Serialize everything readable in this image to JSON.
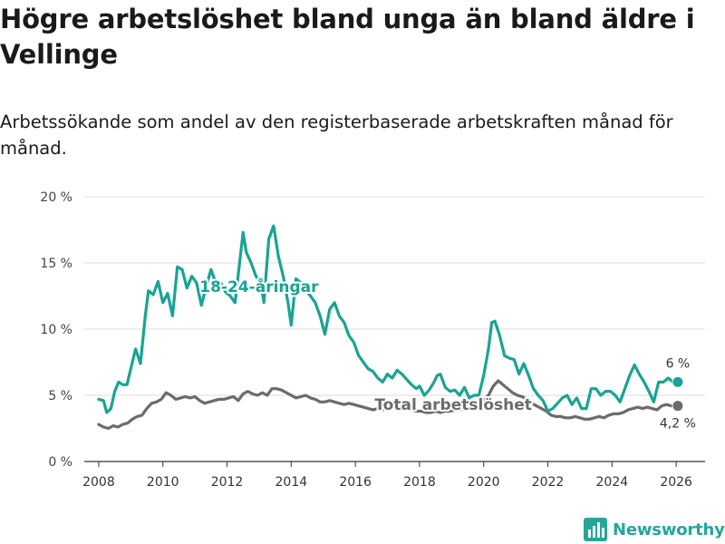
{
  "title": "Högre arbetslöshet bland unga än bland äldre i Vellinge",
  "subtitle": "Arbetssökande som andel av den registerbaserade arbetskraften månad för månad.",
  "brand": {
    "name": "Newsworthy",
    "icon": "bar-chart-icon",
    "color": "#26a69a"
  },
  "chart_data": {
    "type": "line",
    "title": "Högre arbetslöshet bland unga än bland äldre i Vellinge",
    "xlabel": "",
    "ylabel": "",
    "ylim": [
      0,
      20
    ],
    "xlim": [
      2007.55,
      2026.9
    ],
    "grid": true,
    "yticks": [
      {
        "value": 0,
        "label": "0 %"
      },
      {
        "value": 5,
        "label": "5 %"
      },
      {
        "value": 10,
        "label": "10 %"
      },
      {
        "value": 15,
        "label": "15 %"
      },
      {
        "value": 20,
        "label": "20 %"
      }
    ],
    "xticks": [
      {
        "value": 2008,
        "label": "2008"
      },
      {
        "value": 2010,
        "label": "2010"
      },
      {
        "value": 2012,
        "label": "2012"
      },
      {
        "value": 2014,
        "label": "2014"
      },
      {
        "value": 2016,
        "label": "2016"
      },
      {
        "value": 2018,
        "label": "2018"
      },
      {
        "value": 2020,
        "label": "2020"
      },
      {
        "value": 2022,
        "label": "2022"
      },
      {
        "value": 2024,
        "label": "2024"
      },
      {
        "value": 2026,
        "label": "2026"
      }
    ],
    "series": [
      {
        "name": "18-24-åringar",
        "color": "#1aa394",
        "label": "18-24-åringar",
        "end_label": "6 %",
        "points": [
          [
            2008.0,
            4.7
          ],
          [
            2008.15,
            4.6
          ],
          [
            2008.25,
            3.7
          ],
          [
            2008.38,
            4.0
          ],
          [
            2008.5,
            5.3
          ],
          [
            2008.62,
            6.0
          ],
          [
            2008.75,
            5.8
          ],
          [
            2008.88,
            5.8
          ],
          [
            2009.0,
            7.0
          ],
          [
            2009.15,
            8.5
          ],
          [
            2009.3,
            7.4
          ],
          [
            2009.45,
            11.0
          ],
          [
            2009.55,
            12.9
          ],
          [
            2009.7,
            12.6
          ],
          [
            2009.85,
            13.6
          ],
          [
            2010.0,
            12.0
          ],
          [
            2010.15,
            12.7
          ],
          [
            2010.3,
            11.0
          ],
          [
            2010.45,
            14.7
          ],
          [
            2010.6,
            14.5
          ],
          [
            2010.75,
            13.1
          ],
          [
            2010.9,
            14.0
          ],
          [
            2011.05,
            13.5
          ],
          [
            2011.2,
            11.8
          ],
          [
            2011.35,
            13.2
          ],
          [
            2011.5,
            14.5
          ],
          [
            2011.65,
            13.5
          ],
          [
            2011.8,
            13.5
          ],
          [
            2011.95,
            12.8
          ],
          [
            2012.1,
            12.5
          ],
          [
            2012.25,
            12.0
          ],
          [
            2012.4,
            15.2
          ],
          [
            2012.5,
            17.3
          ],
          [
            2012.6,
            15.8
          ],
          [
            2012.75,
            15.0
          ],
          [
            2012.9,
            14.0
          ],
          [
            2013.05,
            13.5
          ],
          [
            2013.15,
            12.0
          ],
          [
            2013.3,
            16.8
          ],
          [
            2013.45,
            17.8
          ],
          [
            2013.6,
            15.5
          ],
          [
            2013.75,
            14.0
          ],
          [
            2013.9,
            12.0
          ],
          [
            2014.0,
            10.3
          ],
          [
            2014.15,
            13.8
          ],
          [
            2014.3,
            13.5
          ],
          [
            2014.45,
            13.0
          ],
          [
            2014.6,
            12.5
          ],
          [
            2014.75,
            12.0
          ],
          [
            2014.9,
            11.0
          ],
          [
            2015.05,
            9.6
          ],
          [
            2015.2,
            11.5
          ],
          [
            2015.35,
            12.0
          ],
          [
            2015.5,
            11.0
          ],
          [
            2015.65,
            10.5
          ],
          [
            2015.8,
            9.5
          ],
          [
            2015.95,
            9.0
          ],
          [
            2016.1,
            8.0
          ],
          [
            2016.25,
            7.5
          ],
          [
            2016.4,
            7.0
          ],
          [
            2016.55,
            6.8
          ],
          [
            2016.7,
            6.3
          ],
          [
            2016.85,
            6.0
          ],
          [
            2017.0,
            6.6
          ],
          [
            2017.15,
            6.3
          ],
          [
            2017.3,
            6.9
          ],
          [
            2017.45,
            6.6
          ],
          [
            2017.6,
            6.2
          ],
          [
            2017.75,
            5.8
          ],
          [
            2017.9,
            5.5
          ],
          [
            2018.0,
            5.7
          ],
          [
            2018.15,
            5.0
          ],
          [
            2018.3,
            5.4
          ],
          [
            2018.45,
            6.0
          ],
          [
            2018.55,
            6.5
          ],
          [
            2018.65,
            6.6
          ],
          [
            2018.8,
            5.6
          ],
          [
            2018.95,
            5.3
          ],
          [
            2019.1,
            5.4
          ],
          [
            2019.25,
            5.0
          ],
          [
            2019.4,
            5.6
          ],
          [
            2019.55,
            4.8
          ],
          [
            2019.7,
            5.0
          ],
          [
            2019.85,
            5.0
          ],
          [
            2020.0,
            6.5
          ],
          [
            2020.15,
            8.5
          ],
          [
            2020.25,
            10.5
          ],
          [
            2020.35,
            10.6
          ],
          [
            2020.5,
            9.5
          ],
          [
            2020.65,
            8.0
          ],
          [
            2020.8,
            7.8
          ],
          [
            2020.95,
            7.7
          ],
          [
            2021.1,
            6.6
          ],
          [
            2021.25,
            7.4
          ],
          [
            2021.4,
            6.5
          ],
          [
            2021.55,
            5.5
          ],
          [
            2021.7,
            5.0
          ],
          [
            2021.85,
            4.6
          ],
          [
            2022.0,
            3.8
          ],
          [
            2022.15,
            4.0
          ],
          [
            2022.3,
            4.4
          ],
          [
            2022.45,
            4.8
          ],
          [
            2022.6,
            5.0
          ],
          [
            2022.75,
            4.3
          ],
          [
            2022.9,
            4.8
          ],
          [
            2023.05,
            4.0
          ],
          [
            2023.2,
            4.0
          ],
          [
            2023.35,
            5.5
          ],
          [
            2023.5,
            5.5
          ],
          [
            2023.65,
            5.0
          ],
          [
            2023.8,
            5.3
          ],
          [
            2023.95,
            5.3
          ],
          [
            2024.1,
            5.0
          ],
          [
            2024.25,
            4.5
          ],
          [
            2024.4,
            5.5
          ],
          [
            2024.55,
            6.5
          ],
          [
            2024.7,
            7.3
          ],
          [
            2024.85,
            6.6
          ],
          [
            2025.0,
            6.0
          ],
          [
            2025.15,
            5.3
          ],
          [
            2025.3,
            4.5
          ],
          [
            2025.45,
            6.0
          ],
          [
            2025.6,
            6.0
          ],
          [
            2025.75,
            6.3
          ],
          [
            2025.9,
            6.0
          ],
          [
            2026.05,
            6.0
          ]
        ]
      },
      {
        "name": "Total arbetslöshet",
        "color": "#6b6b6e",
        "label": "Total arbetslöshet",
        "end_label": "4,2 %",
        "points": [
          [
            2008.0,
            2.8
          ],
          [
            2008.15,
            2.6
          ],
          [
            2008.3,
            2.5
          ],
          [
            2008.45,
            2.7
          ],
          [
            2008.6,
            2.6
          ],
          [
            2008.75,
            2.8
          ],
          [
            2008.9,
            2.9
          ],
          [
            2009.05,
            3.2
          ],
          [
            2009.2,
            3.4
          ],
          [
            2009.35,
            3.5
          ],
          [
            2009.5,
            4.0
          ],
          [
            2009.65,
            4.4
          ],
          [
            2009.8,
            4.5
          ],
          [
            2009.95,
            4.7
          ],
          [
            2010.1,
            5.2
          ],
          [
            2010.25,
            5.0
          ],
          [
            2010.4,
            4.7
          ],
          [
            2010.55,
            4.8
          ],
          [
            2010.7,
            4.9
          ],
          [
            2010.85,
            4.8
          ],
          [
            2011.0,
            4.9
          ],
          [
            2011.15,
            4.6
          ],
          [
            2011.3,
            4.4
          ],
          [
            2011.45,
            4.5
          ],
          [
            2011.6,
            4.6
          ],
          [
            2011.75,
            4.7
          ],
          [
            2011.9,
            4.7
          ],
          [
            2012.05,
            4.8
          ],
          [
            2012.2,
            4.9
          ],
          [
            2012.35,
            4.6
          ],
          [
            2012.5,
            5.1
          ],
          [
            2012.65,
            5.3
          ],
          [
            2012.8,
            5.1
          ],
          [
            2012.95,
            5.0
          ],
          [
            2013.1,
            5.2
          ],
          [
            2013.25,
            5.0
          ],
          [
            2013.4,
            5.5
          ],
          [
            2013.55,
            5.5
          ],
          [
            2013.7,
            5.4
          ],
          [
            2013.85,
            5.2
          ],
          [
            2014.0,
            5.0
          ],
          [
            2014.15,
            4.8
          ],
          [
            2014.3,
            4.9
          ],
          [
            2014.45,
            5.0
          ],
          [
            2014.6,
            4.8
          ],
          [
            2014.75,
            4.7
          ],
          [
            2014.9,
            4.5
          ],
          [
            2015.05,
            4.5
          ],
          [
            2015.2,
            4.6
          ],
          [
            2015.35,
            4.5
          ],
          [
            2015.5,
            4.4
          ],
          [
            2015.65,
            4.3
          ],
          [
            2015.8,
            4.4
          ],
          [
            2015.95,
            4.3
          ],
          [
            2016.1,
            4.2
          ],
          [
            2016.25,
            4.1
          ],
          [
            2016.4,
            4.0
          ],
          [
            2016.55,
            3.9
          ],
          [
            2016.7,
            4.0
          ],
          [
            2016.85,
            3.9
          ],
          [
            2017.0,
            4.0
          ],
          [
            2017.15,
            4.1
          ],
          [
            2017.3,
            4.0
          ],
          [
            2017.45,
            4.0
          ],
          [
            2017.6,
            3.9
          ],
          [
            2017.75,
            3.9
          ],
          [
            2017.9,
            3.8
          ],
          [
            2018.05,
            3.8
          ],
          [
            2018.2,
            3.7
          ],
          [
            2018.35,
            3.7
          ],
          [
            2018.5,
            3.8
          ],
          [
            2018.65,
            3.7
          ],
          [
            2018.8,
            3.8
          ],
          [
            2018.95,
            3.8
          ],
          [
            2019.1,
            3.9
          ],
          [
            2019.25,
            3.9
          ],
          [
            2019.4,
            4.0
          ],
          [
            2019.55,
            4.1
          ],
          [
            2019.7,
            4.1
          ],
          [
            2019.85,
            4.3
          ],
          [
            2020.0,
            4.6
          ],
          [
            2020.15,
            5.0
          ],
          [
            2020.3,
            5.7
          ],
          [
            2020.45,
            6.1
          ],
          [
            2020.6,
            5.8
          ],
          [
            2020.75,
            5.5
          ],
          [
            2020.9,
            5.2
          ],
          [
            2021.05,
            5.0
          ],
          [
            2021.2,
            4.9
          ],
          [
            2021.35,
            4.7
          ],
          [
            2021.5,
            4.4
          ],
          [
            2021.65,
            4.2
          ],
          [
            2021.8,
            4.0
          ],
          [
            2021.95,
            3.8
          ],
          [
            2022.1,
            3.5
          ],
          [
            2022.25,
            3.4
          ],
          [
            2022.4,
            3.4
          ],
          [
            2022.55,
            3.3
          ],
          [
            2022.7,
            3.3
          ],
          [
            2022.85,
            3.4
          ],
          [
            2023.0,
            3.3
          ],
          [
            2023.15,
            3.2
          ],
          [
            2023.3,
            3.2
          ],
          [
            2023.45,
            3.3
          ],
          [
            2023.6,
            3.4
          ],
          [
            2023.75,
            3.3
          ],
          [
            2023.9,
            3.5
          ],
          [
            2024.05,
            3.6
          ],
          [
            2024.2,
            3.6
          ],
          [
            2024.35,
            3.7
          ],
          [
            2024.5,
            3.9
          ],
          [
            2024.65,
            4.0
          ],
          [
            2024.8,
            4.1
          ],
          [
            2024.95,
            4.0
          ],
          [
            2025.1,
            4.1
          ],
          [
            2025.25,
            4.0
          ],
          [
            2025.4,
            3.9
          ],
          [
            2025.55,
            4.2
          ],
          [
            2025.7,
            4.3
          ],
          [
            2025.85,
            4.2
          ],
          [
            2026.05,
            4.2
          ]
        ]
      }
    ]
  }
}
